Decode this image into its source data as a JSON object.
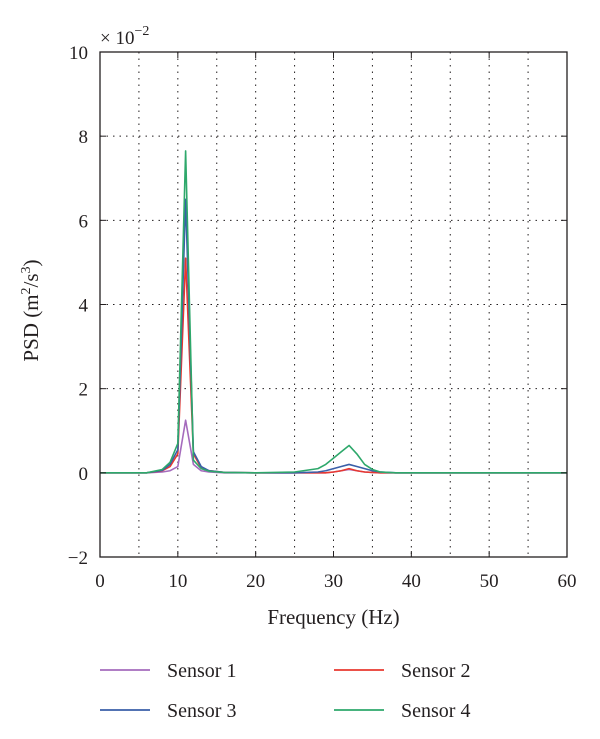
{
  "chart_data": {
    "type": "line",
    "xlabel": "Frequency (Hz)",
    "ylabel_main": "PSD (m",
    "ylabel_sup1": "2",
    "ylabel_mid": "/s",
    "ylabel_sup2": "3",
    "ylabel_end": ")",
    "y_multiplier_base": "× 10",
    "y_multiplier_exp": "−2",
    "xlim": [
      0,
      60
    ],
    "ylim": [
      -2,
      10
    ],
    "x_ticks": [
      0,
      10,
      20,
      30,
      40,
      50,
      60
    ],
    "x_tick_labels": [
      "0",
      "10",
      "20",
      "30",
      "40",
      "50",
      "60"
    ],
    "y_ticks": [
      -2,
      0,
      2,
      4,
      6,
      8,
      10
    ],
    "y_tick_labels": [
      "−2",
      "0",
      "2",
      "4",
      "6",
      "8",
      "10"
    ],
    "x_grid": [
      5,
      15,
      25,
      35,
      45,
      55
    ],
    "y_grid": [
      2,
      4,
      6,
      8
    ],
    "grid": true,
    "legend_position": "bottom",
    "x": [
      0,
      2,
      4,
      6,
      8,
      9,
      10,
      11,
      12,
      13,
      14,
      16,
      20,
      25,
      28,
      29,
      30,
      31,
      32,
      33,
      34,
      35,
      36,
      38,
      40,
      45,
      50,
      55,
      58,
      60
    ],
    "series": [
      {
        "name": "Sensor 1",
        "color": "#a56bbd",
        "values": [
          0,
          0,
          0,
          0,
          0.02,
          0.05,
          0.15,
          1.25,
          0.2,
          0.05,
          0.02,
          0,
          0,
          0,
          0,
          0,
          0.02,
          0.05,
          0.08,
          0.05,
          0.02,
          0.01,
          0,
          0,
          0,
          0,
          0,
          0,
          0,
          0
        ]
      },
      {
        "name": "Sensor 2",
        "color": "#e8382f",
        "values": [
          0,
          0,
          0,
          0,
          0.05,
          0.15,
          0.45,
          5.1,
          0.45,
          0.12,
          0.05,
          0.01,
          0,
          0,
          0,
          0,
          0.02,
          0.05,
          0.1,
          0.05,
          0.02,
          0.01,
          0,
          0,
          0,
          0,
          0,
          0,
          0,
          0
        ]
      },
      {
        "name": "Sensor 3",
        "color": "#3a5fa8",
        "values": [
          0,
          0,
          0,
          0,
          0.06,
          0.2,
          0.55,
          6.5,
          0.5,
          0.15,
          0.05,
          0.01,
          0,
          0,
          0.02,
          0.05,
          0.1,
          0.15,
          0.2,
          0.15,
          0.1,
          0.05,
          0.02,
          0,
          0,
          0,
          0,
          0,
          0,
          0
        ]
      },
      {
        "name": "Sensor 4",
        "color": "#2ea86b",
        "values": [
          0,
          0,
          0,
          0,
          0.08,
          0.25,
          0.7,
          7.65,
          0.3,
          0.1,
          0.04,
          0.01,
          0,
          0.02,
          0.1,
          0.2,
          0.35,
          0.5,
          0.65,
          0.45,
          0.2,
          0.08,
          0.02,
          0,
          0,
          0,
          0,
          0,
          0,
          0
        ]
      }
    ]
  }
}
